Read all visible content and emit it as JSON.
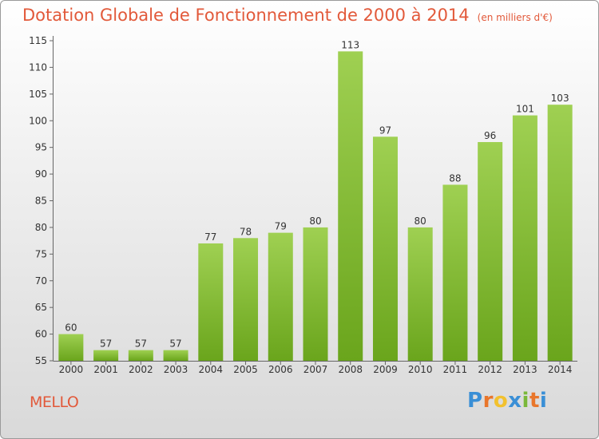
{
  "title": "Dotation Globale de Fonctionnement de 2000 à 2014",
  "unit": "(en milliers d'€)",
  "place": "MELLO",
  "logo": {
    "letters": [
      "P",
      "r",
      "o",
      "x",
      "i",
      "t",
      "i"
    ],
    "colors": [
      "#3a8fd6",
      "#e9762b",
      "#f2c12e",
      "#3a8fd6",
      "#7ab83a",
      "#e9762b",
      "#3a8fd6"
    ]
  },
  "colors": {
    "title": "#e2593a",
    "bar_top": "#9fd052",
    "bar_bottom": "#6aa51c"
  },
  "chart_data": {
    "type": "bar",
    "title": "Dotation Globale de Fonctionnement de 2000 à 2014",
    "categories": [
      "2000",
      "2001",
      "2002",
      "2003",
      "2004",
      "2005",
      "2006",
      "2007",
      "2008",
      "2009",
      "2010",
      "2011",
      "2012",
      "2013",
      "2014"
    ],
    "values": [
      60,
      57,
      57,
      57,
      77,
      78,
      79,
      80,
      113,
      97,
      80,
      88,
      96,
      101,
      103
    ],
    "ylim": [
      55,
      115
    ],
    "yticks": [
      55,
      60,
      65,
      70,
      75,
      80,
      85,
      90,
      95,
      100,
      105,
      110,
      115
    ],
    "grid": false
  }
}
